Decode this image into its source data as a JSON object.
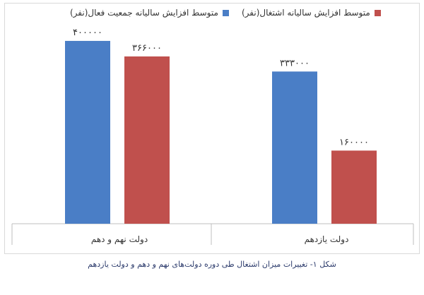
{
  "chart_data": {
    "type": "bar",
    "categories": [
      "دولت نهم و دهم",
      "دولت یازدهم"
    ],
    "series": [
      {
        "name": "متوسط افزایش سالیانه جمعیت فعال(نفر)",
        "values": [
          400000,
          333000
        ],
        "labels": [
          "۴۰۰۰۰۰",
          "۳۳۳۰۰۰"
        ],
        "color": "#4a7ec6"
      },
      {
        "name": "متوسط افزایش سالیانه اشتغال(نفر)",
        "values": [
          366000,
          160000
        ],
        "labels": [
          "۳۶۶۰۰۰",
          "۱۶۰۰۰۰"
        ],
        "color": "#c0504d"
      }
    ],
    "ylim": [
      0,
      420000
    ],
    "grid": false,
    "legend_position": "top"
  },
  "caption": "شکل ۱- تغییرات میزان اشتغال طی دوره دولت‌های نهم و دهم و دولت یازدهم"
}
